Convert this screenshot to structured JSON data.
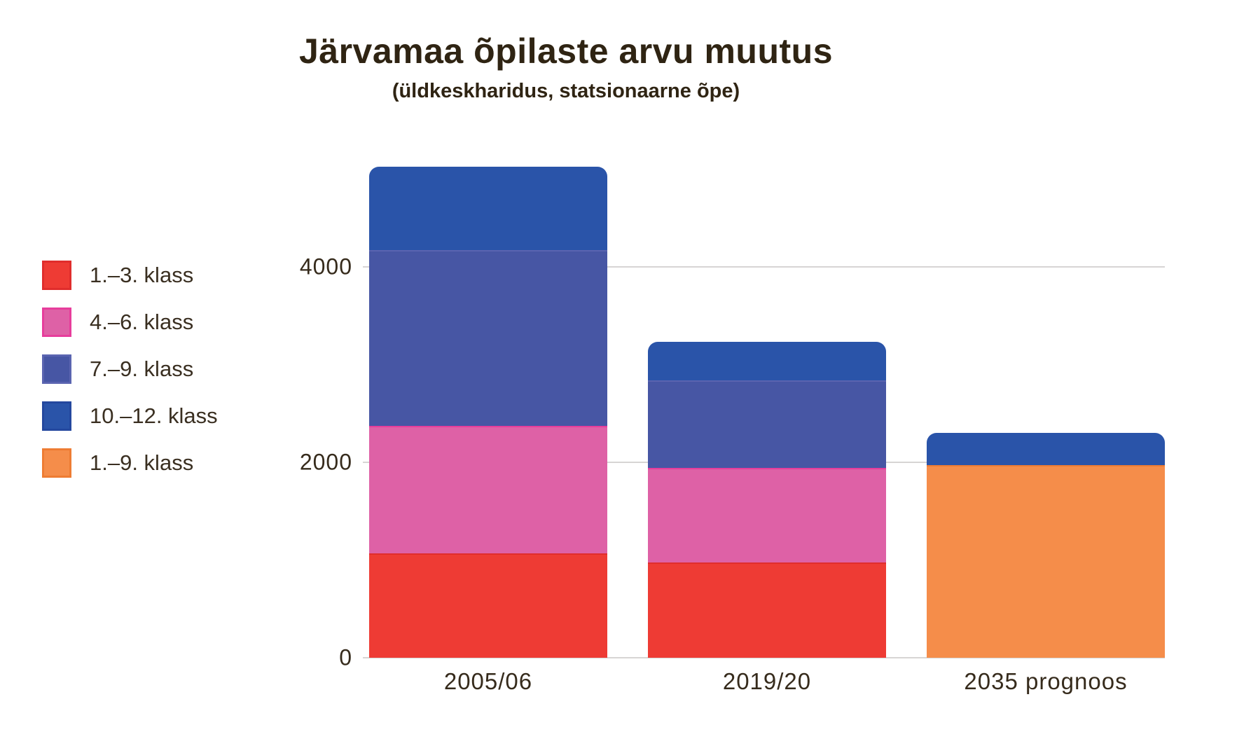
{
  "title": "Järvamaa õpilaste arvu muutus",
  "subtitle": "(üldkeskharidus, statsionaarne õpe)",
  "text_color": "#2f2413",
  "gridline_color": "#d7d5d4",
  "chart_data": {
    "type": "bar",
    "stacked": true,
    "title": "Järvamaa õpilaste arvu muutus",
    "subtitle": "(üldkeskharidus, statsionaarne õpe)",
    "categories": [
      "2005/06",
      "2019/20",
      "2035 prognoos"
    ],
    "series": [
      {
        "name": "1.–3. klass",
        "color": "#ee3b34",
        "border_color": "#e02d2c",
        "values": [
          1070,
          975,
          0
        ]
      },
      {
        "name": "4.–6. klass",
        "color": "#de61a6",
        "border_color": "#e73d9c",
        "values": [
          1300,
          970,
          0
        ]
      },
      {
        "name": "7.–9. klass",
        "color": "#4756a4",
        "border_color": "#5a64b0",
        "values": [
          1800,
          895,
          0
        ]
      },
      {
        "name": "10.–12. klass",
        "color": "#2a54a9",
        "border_color": "#24489e",
        "values": [
          855,
          395,
          330
        ]
      },
      {
        "name": "1.–9. klass",
        "color": "#f58d4a",
        "border_color": "#ee7c33",
        "values": [
          0,
          0,
          1970
        ]
      }
    ],
    "stack_order": [
      0,
      1,
      2,
      4,
      3
    ],
    "totals_estimated": [
      5025,
      3235,
      2300
    ],
    "y_ticks": [
      0,
      2000,
      4000
    ],
    "ylim": [
      0,
      5100
    ],
    "grid": true,
    "legend_position": "left"
  }
}
